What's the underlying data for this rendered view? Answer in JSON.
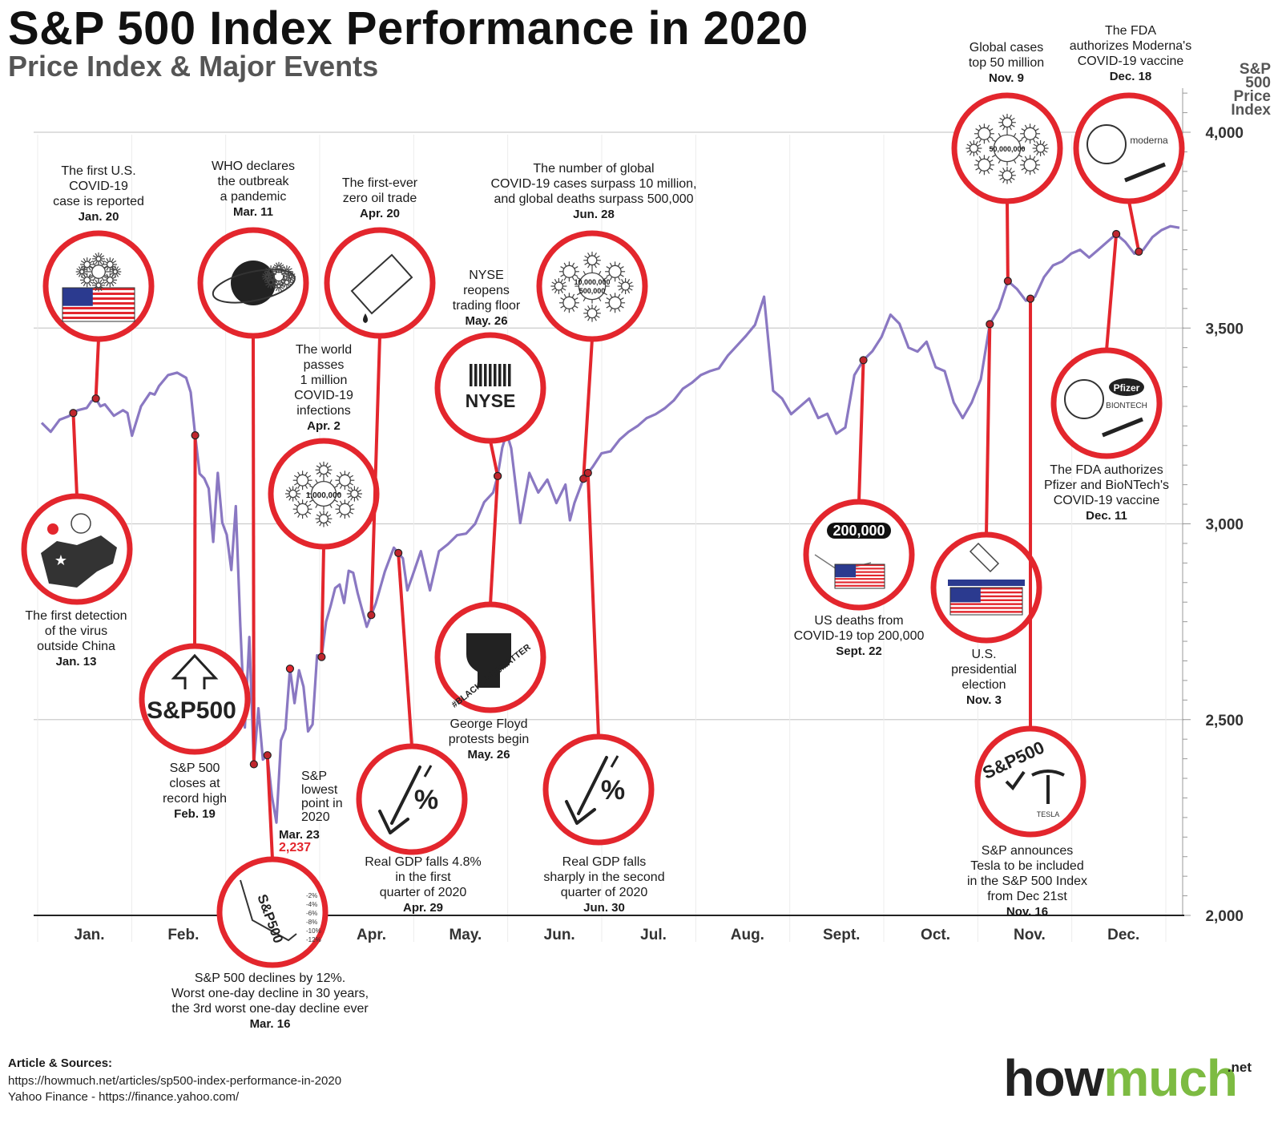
{
  "header": {
    "title": "S&P 500 Index Performance in 2020",
    "subtitle": "Price Index & Major Events"
  },
  "footer": {
    "label": "Article & Sources:",
    "source1": "https://howmuch.net/articles/sp500-index-performance-in-2020",
    "source2": "Yahoo Finance - https://finance.yahoo.com/",
    "brand_how": "how",
    "brand_much": "much",
    "brand_tld": ".net"
  },
  "colors": {
    "line": "#8a78c2",
    "accent": "#e3262d",
    "grid": "#cccccc",
    "text": "#1a1a1a",
    "brand_green": "#7dbb42"
  },
  "chart_data": {
    "type": "line",
    "title": "S&P 500 Index Performance in 2020",
    "subtitle": "Price Index & Major Events",
    "ylabel_lines": [
      "S&P",
      "500",
      "Price",
      "Index"
    ],
    "ylim": [
      2000,
      4000
    ],
    "yticks": [
      2000,
      2500,
      3000,
      3500,
      4000
    ],
    "ytick_labels": [
      "2,000",
      "2,500",
      "3,000",
      "3,500",
      "4,000"
    ],
    "months": [
      "Jan.",
      "Feb.",
      "Mar.",
      "Apr.",
      "May.",
      "Jun.",
      "Jul.",
      "Aug.",
      "Sept.",
      "Oct.",
      "Nov.",
      "Dec."
    ],
    "x_unit": "trading day index (0 = Jan 2, 2020)",
    "series": [
      {
        "name": "S&P 500 Price Index",
        "x": [
          0,
          2,
          4,
          6,
          7,
          8,
          10,
          11,
          12,
          13,
          14,
          16,
          18,
          19,
          20,
          22,
          24,
          25,
          26,
          28,
          30,
          32,
          33,
          34,
          35,
          36,
          37,
          38,
          39,
          40,
          41,
          42,
          43,
          44,
          45,
          46,
          47,
          48,
          49,
          50,
          51,
          52,
          53,
          54,
          55,
          56,
          57,
          58,
          59,
          60,
          61,
          62,
          63,
          64,
          65,
          66,
          67,
          68,
          69,
          70,
          72,
          74,
          75,
          76,
          78,
          80,
          81,
          82,
          84,
          86,
          88,
          90,
          92,
          94,
          96,
          98,
          100,
          101,
          102,
          103,
          104,
          106,
          108,
          110,
          112,
          114,
          116,
          117,
          118,
          120,
          122,
          124,
          126,
          128,
          130,
          132,
          134,
          136,
          138,
          140,
          142,
          144,
          146,
          148,
          150,
          152,
          154,
          156,
          158,
          160,
          162,
          164,
          166,
          168,
          170,
          172,
          174,
          176,
          178,
          180,
          182,
          184,
          186,
          188,
          190,
          192,
          194,
          196,
          198,
          200,
          202,
          204,
          206,
          208,
          210,
          212,
          214,
          216,
          218,
          220,
          222,
          224,
          226,
          228,
          230,
          232,
          234,
          236,
          238,
          240,
          242,
          244,
          246,
          248,
          250,
          252
        ],
        "values": [
          3258,
          3235,
          3266,
          3275,
          3283,
          3290,
          3296,
          3313,
          3320,
          3300,
          3305,
          3276,
          3290,
          3283,
          3225,
          3300,
          3334,
          3330,
          3352,
          3380,
          3386,
          3373,
          3336,
          3226,
          3128,
          3116,
          3090,
          2954,
          3130,
          3003,
          2972,
          2882,
          3045,
          2741,
          2480,
          2711,
          2386,
          2529,
          2398,
          2409,
          2304,
          2237,
          2447,
          2476,
          2630,
          2542,
          2626,
          2584,
          2470,
          2488,
          2664,
          2660,
          2750,
          2790,
          2836,
          2845,
          2798,
          2880,
          2875,
          2823,
          2737,
          2797,
          2837,
          2878,
          2939,
          2912,
          2830,
          2863,
          2930,
          2830,
          2930,
          2948,
          2971,
          2975,
          3000,
          3055,
          3080,
          3122,
          3194,
          3232,
          3193,
          3002,
          3130,
          3080,
          3113,
          3053,
          3100,
          3009,
          3053,
          3115,
          3145,
          3180,
          3185,
          3215,
          3235,
          3250,
          3270,
          3280,
          3295,
          3315,
          3345,
          3360,
          3380,
          3390,
          3397,
          3430,
          3455,
          3480,
          3508,
          3580,
          3340,
          3320,
          3280,
          3300,
          3320,
          3270,
          3281,
          3230,
          3246,
          3380,
          3418,
          3441,
          3477,
          3534,
          3511,
          3450,
          3440,
          3465,
          3400,
          3390,
          3310,
          3270,
          3310,
          3369,
          3510,
          3550,
          3620,
          3600,
          3570,
          3580,
          3630,
          3660,
          3670,
          3690,
          3700,
          3680,
          3700,
          3720,
          3740,
          3720,
          3690,
          3700,
          3732,
          3750,
          3760,
          3756
        ]
      }
    ],
    "events": [
      {
        "title": [
          "The first detection",
          "of the virus",
          "outside China"
        ],
        "date": "Jan. 13",
        "icon": "china-map-icon"
      },
      {
        "title": [
          "The first U.S.",
          "COVID-19",
          "case is reported"
        ],
        "date": "Jan. 20",
        "icon": "us-flag-virus-icon"
      },
      {
        "title": [
          "S&P 500",
          "closes at",
          "record high"
        ],
        "date": "Feb. 19",
        "icon": "sp500-up-arrow-icon",
        "badge": "S&P500"
      },
      {
        "title": [
          "WHO declares",
          "the outbreak",
          "a pandemic"
        ],
        "date": "Mar. 11",
        "icon": "globe-virus-icon"
      },
      {
        "title": [
          "S&P 500 declines by 12%.",
          "Worst one-day decline in 30 years,",
          "the 3rd worst one-day decline ever"
        ],
        "date": "Mar. 16",
        "icon": "falling-stock-icon",
        "ticks": [
          "-2%",
          "-4%",
          "-6%",
          "-8%",
          "-10%",
          "-12%"
        ],
        "badge": "S&P500"
      },
      {
        "title": [
          "S&P",
          "lowest",
          "point in",
          "2020"
        ],
        "date": "Mar. 23",
        "value_label": "2,237"
      },
      {
        "title": [
          "The world",
          "passes",
          "1 million",
          "COVID-19",
          "infections"
        ],
        "date": "Apr. 2",
        "icon": "virus-1m-icon",
        "badge": "1,000,000"
      },
      {
        "title": [
          "The first-ever",
          "zero oil trade"
        ],
        "date": "Apr. 20",
        "icon": "oil-barrel-icon"
      },
      {
        "title": [
          "Real GDP falls 4.8%",
          "in the first",
          "quarter of 2020"
        ],
        "date": "Apr. 29",
        "icon": "down-percent-icon"
      },
      {
        "title": [
          "NYSE",
          "reopens",
          "trading floor"
        ],
        "date": "May. 26",
        "icon": "nyse-icon",
        "badge": "NYSE"
      },
      {
        "title": [
          "George Floyd",
          "protests begin"
        ],
        "date": "May. 26",
        "icon": "fist-icon",
        "badge": "#BLACKLIVESMATTER"
      },
      {
        "title": [
          "The number of global",
          "COVID-19 cases surpass 10 million,",
          "and global deaths surpass 500,000"
        ],
        "date": "Jun. 28",
        "icon": "virus-10m-icon",
        "badge": "10,000,000",
        "badge2": "500,000"
      },
      {
        "title": [
          "Real GDP falls",
          "sharply in the second",
          "quarter of 2020"
        ],
        "date": "Jun. 30",
        "icon": "down-percent-icon"
      },
      {
        "title": [
          "US deaths from",
          "COVID-19 top 200,000"
        ],
        "date": "Sept. 22",
        "icon": "us-flag-bed-icon",
        "badge": "200,000"
      },
      {
        "title": [
          "U.S.",
          "presidential",
          "election"
        ],
        "date": "Nov. 3",
        "icon": "ballot-box-icon"
      },
      {
        "title": [
          "Global cases",
          "top 50 million"
        ],
        "date": "Nov. 9",
        "icon": "virus-50m-icon",
        "badge": "50,000,000"
      },
      {
        "title": [
          "S&P announces",
          "Tesla to be included",
          "in the S&P 500 Index",
          "from Dec 21st"
        ],
        "date": "Nov. 16",
        "icon": "tesla-sp500-icon",
        "badge": "S&P500",
        "badge2": "TESLA"
      },
      {
        "title": [
          "The FDA authorizes",
          "Pfizer and BioNTech's",
          "COVID-19 vaccine"
        ],
        "date": "Dec. 11",
        "icon": "pfizer-vaccine-icon",
        "badge": "Pfizer",
        "badge2": "BIONTECH"
      },
      {
        "title": [
          "The FDA",
          "authorizes Moderna's",
          "COVID-19 vaccine"
        ],
        "date": "Dec. 18",
        "icon": "moderna-vaccine-icon",
        "badge": "moderna"
      }
    ]
  }
}
